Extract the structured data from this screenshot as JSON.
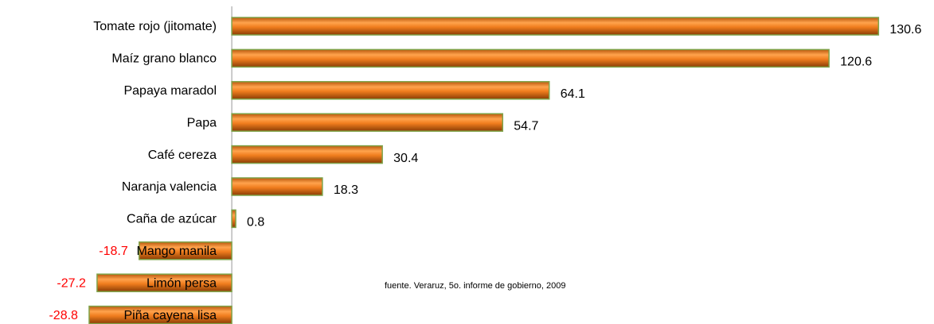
{
  "chart_data": {
    "type": "barh",
    "categories": [
      "Tomate rojo (jitomate)",
      "Maíz grano blanco",
      "Papaya maradol",
      "Papa",
      "Café cereza",
      "Naranja valencia",
      "Caña de azúcar",
      "Mango manila",
      "Limón persa",
      "Piña cayena lisa"
    ],
    "values": [
      130.6,
      120.6,
      64.1,
      54.7,
      30.4,
      18.3,
      0.8,
      -18.7,
      -27.2,
      -28.8
    ],
    "color": "#f07d1e",
    "negative_label_color": "#ff0000",
    "xlim": [
      -46.8,
      141.8
    ],
    "note": "fuente. Veraruz, 5o. informe de gobierno, 2009"
  }
}
